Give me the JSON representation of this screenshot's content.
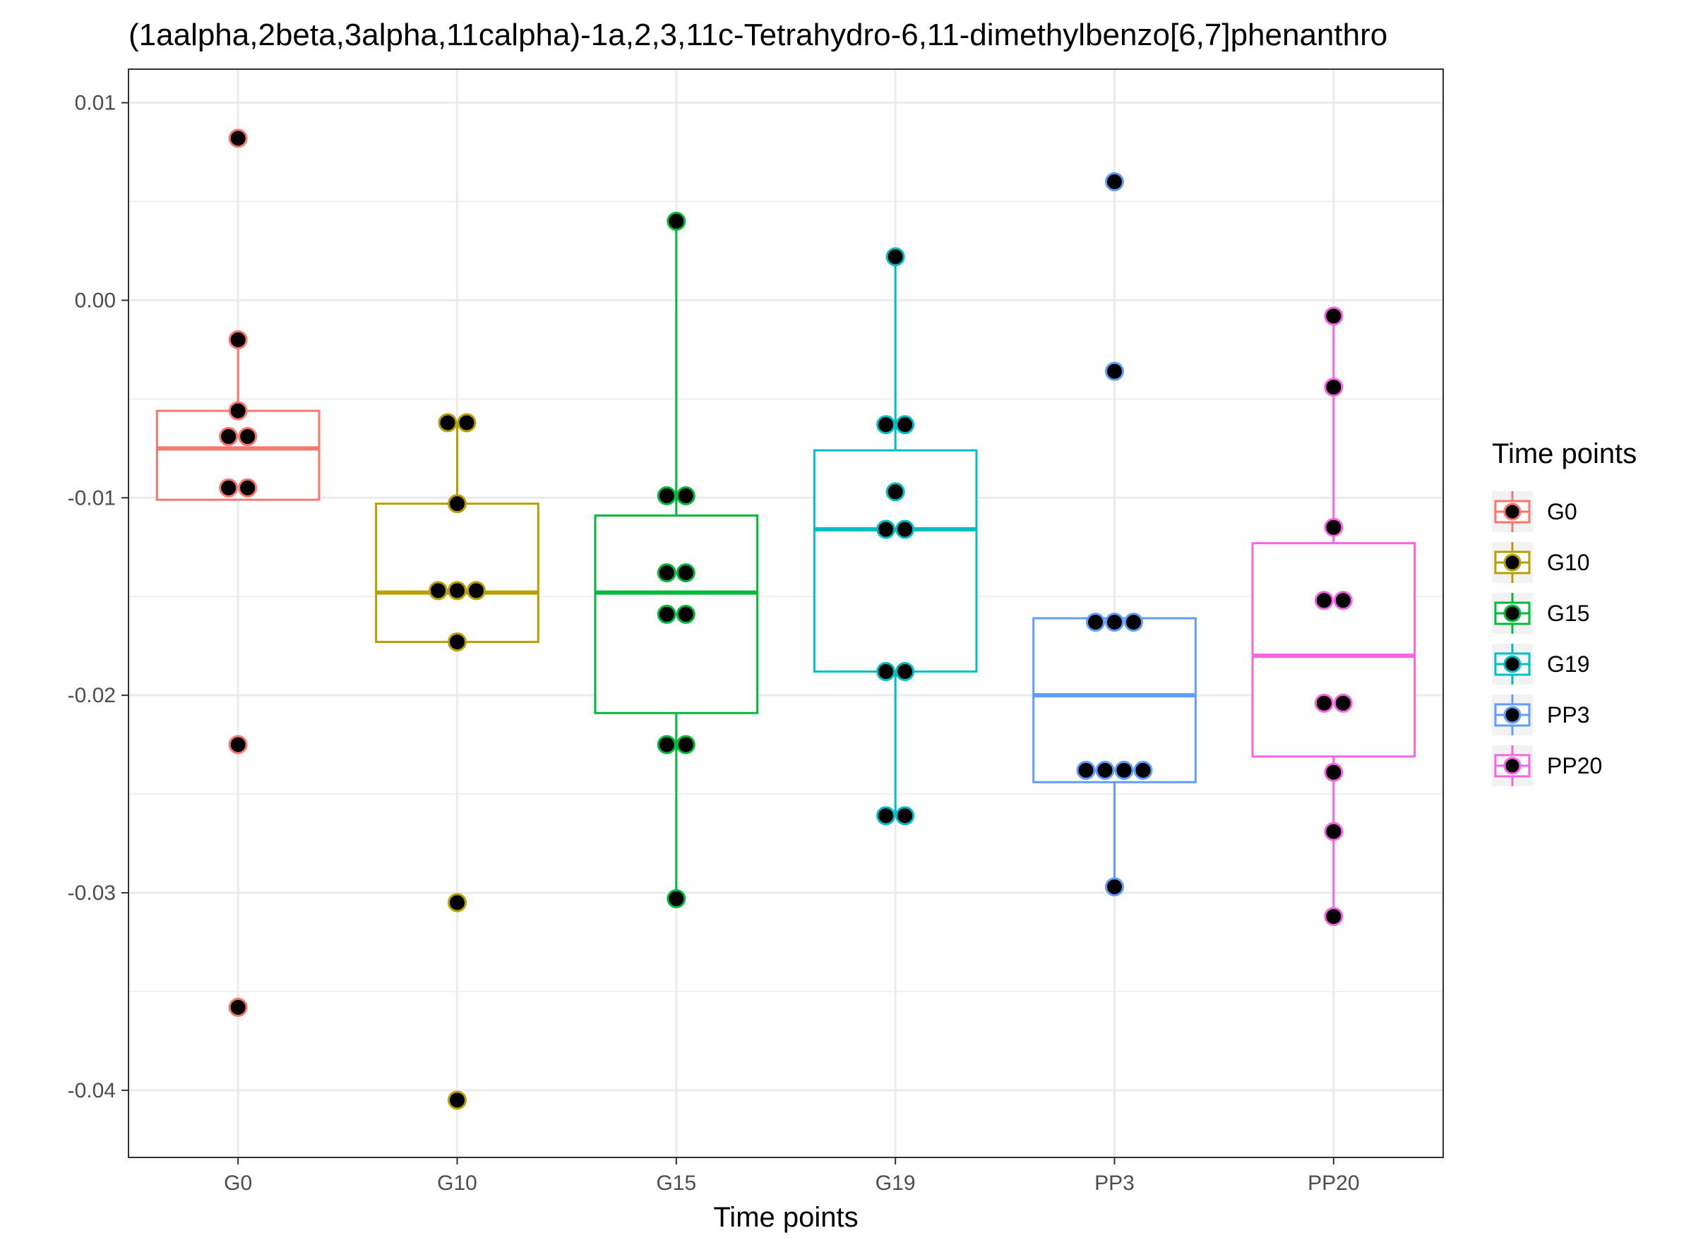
{
  "chart_data": {
    "type": "box",
    "title": "(1aalpha,2beta,3alpha,11calpha)-1a,2,3,11c-Tetrahydro-6,11-dimethylbenzo[6,7]phenanthro",
    "xlabel": "Time points",
    "ylabel": "",
    "categories": [
      "G0",
      "G10",
      "G15",
      "G19",
      "PP3",
      "PP20"
    ],
    "ylim": [
      -0.0434,
      0.0117
    ],
    "yticks": [
      0.01,
      0.0,
      -0.01,
      -0.02,
      -0.03,
      -0.04
    ],
    "ytick_labels": [
      "0.01",
      "0.00",
      "-0.01",
      "-0.02",
      "-0.03",
      "-0.04"
    ],
    "grid": true,
    "legend": {
      "title": "Time points",
      "position": "right",
      "entries": [
        "G0",
        "G10",
        "G15",
        "G19",
        "PP3",
        "PP20"
      ]
    },
    "colors": {
      "G0": "#F8766D",
      "G10": "#B79F00",
      "G15": "#00BA38",
      "G19": "#00BFC4",
      "PP3": "#619CFF",
      "PP20": "#F564E3"
    },
    "series": [
      {
        "name": "G0",
        "box": {
          "q1": -0.0101,
          "median": -0.0075,
          "q3": -0.0056,
          "whisker_low": -0.0101,
          "whisker_high": -0.002
        },
        "points": [
          0.0082,
          -0.002,
          -0.0056,
          -0.0069,
          -0.0069,
          -0.0095,
          -0.0095,
          -0.0225,
          -0.0358
        ]
      },
      {
        "name": "G10",
        "box": {
          "q1": -0.0173,
          "median": -0.0148,
          "q3": -0.0103,
          "whisker_low": -0.0173,
          "whisker_high": -0.0062
        },
        "points": [
          -0.0062,
          -0.0062,
          -0.0103,
          -0.0147,
          -0.0147,
          -0.0147,
          -0.0173,
          -0.0305,
          -0.0405
        ]
      },
      {
        "name": "G15",
        "box": {
          "q1": -0.0209,
          "median": -0.0148,
          "q3": -0.0109,
          "whisker_low": -0.0303,
          "whisker_high": 0.004
        },
        "points": [
          0.004,
          -0.0099,
          -0.0099,
          -0.0138,
          -0.0138,
          -0.0159,
          -0.0159,
          -0.0225,
          -0.0225,
          -0.0303
        ]
      },
      {
        "name": "G19",
        "box": {
          "q1": -0.0188,
          "median": -0.0116,
          "q3": -0.0076,
          "whisker_low": -0.0261,
          "whisker_high": 0.0022
        },
        "points": [
          0.0022,
          -0.0063,
          -0.0063,
          -0.0097,
          -0.0116,
          -0.0116,
          -0.0188,
          -0.0188,
          -0.0261,
          -0.0261
        ]
      },
      {
        "name": "PP3",
        "box": {
          "q1": -0.0244,
          "median": -0.02,
          "q3": -0.0161,
          "whisker_low": -0.0297,
          "whisker_high": -0.0161
        },
        "points": [
          0.006,
          -0.0036,
          -0.0163,
          -0.0163,
          -0.0163,
          -0.0238,
          -0.0238,
          -0.0238,
          -0.0238,
          -0.0297
        ]
      },
      {
        "name": "PP20",
        "box": {
          "q1": -0.0231,
          "median": -0.018,
          "q3": -0.0123,
          "whisker_low": -0.0312,
          "whisker_high": -0.0008
        },
        "points": [
          -0.0008,
          -0.0044,
          -0.0115,
          -0.0152,
          -0.0152,
          -0.0204,
          -0.0204,
          -0.0239,
          -0.0269,
          -0.0312
        ]
      }
    ]
  }
}
